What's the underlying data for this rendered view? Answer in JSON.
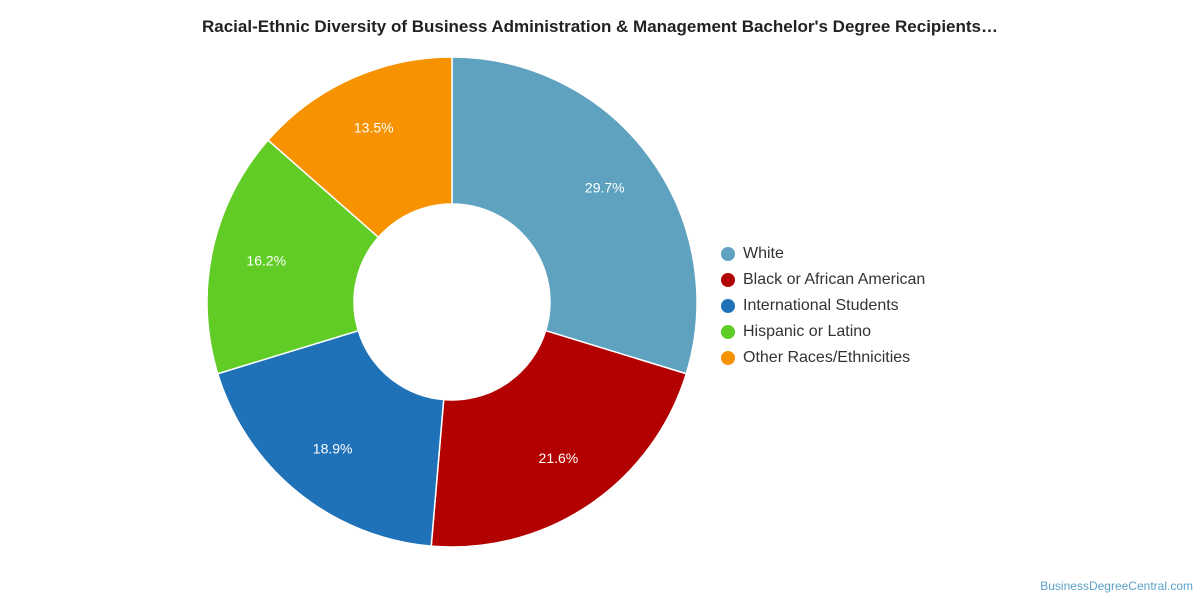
{
  "chart_data": {
    "type": "pie",
    "style": "donut",
    "title": "Racial-Ethnic Diversity of Business Administration & Management Bachelor's Degree Recipients…",
    "categories": [
      "White",
      "Black or African American",
      "International Students",
      "Hispanic or Latino",
      "Other Races/Ethnicities"
    ],
    "values": [
      29.7,
      21.6,
      18.9,
      16.2,
      13.5
    ],
    "value_labels": [
      "29.7%",
      "21.6%",
      "18.9%",
      "16.2%",
      "13.5%"
    ],
    "colors": [
      "#5ea2c0",
      "#b30000",
      "#1f72b8",
      "#60cc25",
      "#f79200"
    ],
    "legend_position": "right"
  },
  "watermark": "BusinessDegreeCentral.com"
}
